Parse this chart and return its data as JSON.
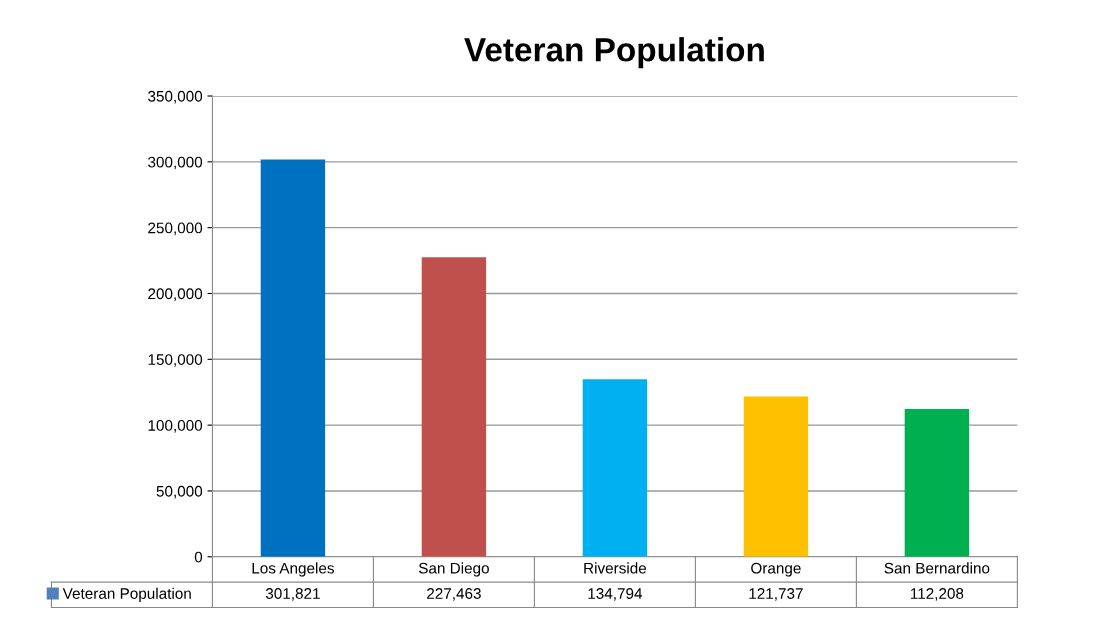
{
  "chart_data": {
    "type": "bar",
    "title": "Veteran Population",
    "categories": [
      "Los Angeles",
      "San Diego",
      "Riverside",
      "Orange",
      "San Bernardino"
    ],
    "series": [
      {
        "name": "Veteran Population",
        "color": "#4f81bd",
        "colors": [
          "#0070c0",
          "#c0504d",
          "#00b0f0",
          "#ffc000",
          "#00b050"
        ],
        "values": [
          301821,
          227463,
          134794,
          121737,
          112208
        ],
        "value_labels": [
          "301,821",
          "227,463",
          "134,794",
          "121,737",
          "112,208"
        ]
      }
    ],
    "ylim": [
      0,
      350000
    ],
    "yticks": [
      {
        "value": 0,
        "label": "0"
      },
      {
        "value": 50000,
        "label": "50,000"
      },
      {
        "value": 100000,
        "label": "100,000"
      },
      {
        "value": 150000,
        "label": "150,000"
      },
      {
        "value": 200000,
        "label": "200,000"
      },
      {
        "value": 250000,
        "label": "250,000"
      },
      {
        "value": 300000,
        "label": "300,000"
      },
      {
        "value": 350000,
        "label": "350,000"
      }
    ],
    "grid": "y",
    "legend": "bottom"
  }
}
